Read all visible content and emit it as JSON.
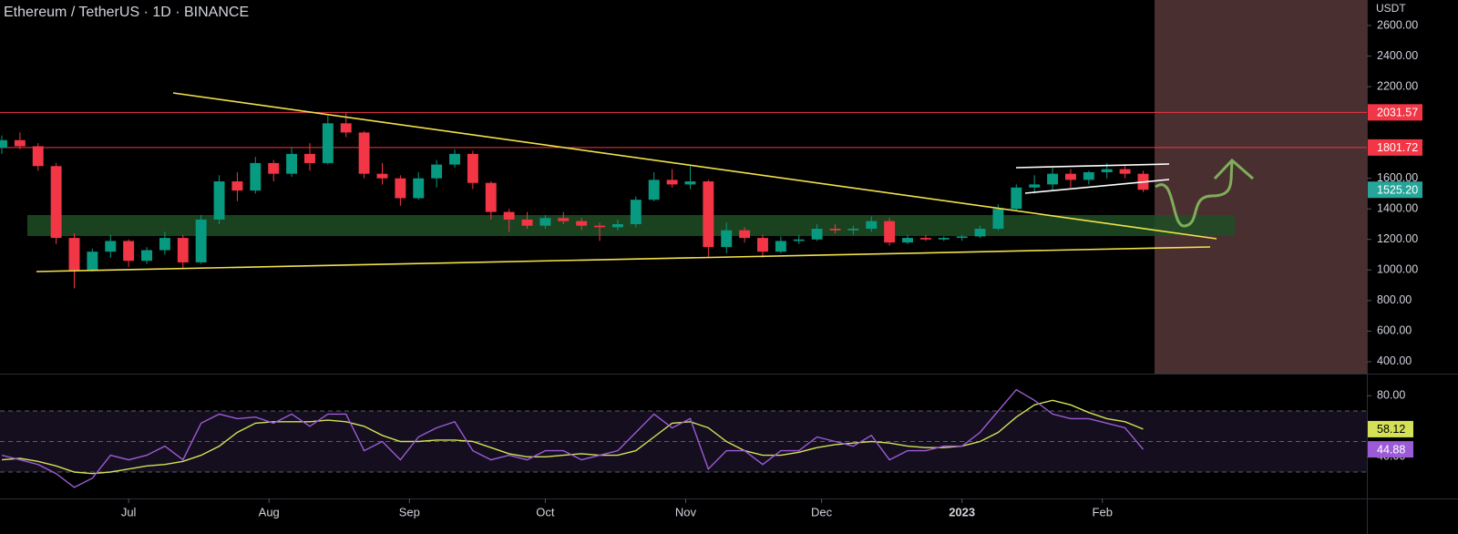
{
  "chart_data": [
    {
      "type": "candlestick",
      "title": "Ethereum / TetherUS · 1D · BINANCE",
      "ylabel": "USDT",
      "xlim": [
        1.6,
        303.4
      ],
      "ylim": [
        322,
        2767
      ],
      "yticks": [
        {
          "value": 400,
          "label": "400.00"
        },
        {
          "value": 600,
          "label": "600.00"
        },
        {
          "value": 800,
          "label": "800.00"
        },
        {
          "value": 1000,
          "label": "1000.00"
        },
        {
          "value": 1200,
          "label": "1200.00"
        },
        {
          "value": 1400,
          "label": "1400.00"
        },
        {
          "value": 1600,
          "label": "1600.00"
        },
        {
          "value": 2200,
          "label": "2200.00"
        },
        {
          "value": 2400,
          "label": "2400.00"
        },
        {
          "value": 2600,
          "label": "2600.00"
        }
      ],
      "up_color": "#089981",
      "down_color": "#f23645",
      "x": [
        2,
        6,
        10,
        14,
        18,
        22,
        26,
        30,
        34,
        38,
        42,
        46,
        50,
        54,
        58,
        62,
        66,
        70,
        74,
        78,
        82,
        86,
        90,
        94,
        98,
        102,
        106,
        110,
        114,
        118,
        122,
        126,
        130,
        134,
        138,
        142,
        146,
        150,
        154,
        158,
        162,
        166,
        170,
        174,
        178,
        182,
        186,
        190,
        194,
        198,
        202,
        206,
        210,
        214,
        218,
        222,
        226,
        230,
        234,
        238,
        242,
        246,
        250,
        254
      ],
      "open": [
        1800,
        1850,
        1810,
        1680,
        1210,
        1000,
        1120,
        1190,
        1060,
        1130,
        1210,
        1050,
        1330,
        1580,
        1520,
        1700,
        1630,
        1760,
        1700,
        1960,
        1900,
        1630,
        1600,
        1470,
        1600,
        1690,
        1760,
        1570,
        1380,
        1330,
        1290,
        1340,
        1320,
        1290,
        1280,
        1300,
        1460,
        1590,
        1560,
        1580,
        1150,
        1260,
        1210,
        1120,
        1190,
        1200,
        1270,
        1260,
        1270,
        1320,
        1180,
        1210,
        1200,
        1210,
        1220,
        1270,
        1400,
        1540,
        1560,
        1630,
        1590,
        1640,
        1660,
        1630
      ],
      "high": [
        1880,
        1900,
        1830,
        1700,
        1240,
        1140,
        1230,
        1200,
        1150,
        1250,
        1230,
        1360,
        1620,
        1640,
        1740,
        1720,
        1800,
        1830,
        2010,
        2030,
        1910,
        1700,
        1620,
        1640,
        1720,
        1790,
        1780,
        1580,
        1400,
        1380,
        1360,
        1380,
        1340,
        1310,
        1330,
        1480,
        1640,
        1660,
        1680,
        1590,
        1310,
        1280,
        1230,
        1220,
        1230,
        1300,
        1300,
        1290,
        1350,
        1340,
        1230,
        1230,
        1220,
        1230,
        1290,
        1430,
        1560,
        1620,
        1670,
        1660,
        1650,
        1700,
        1690,
        1650
      ],
      "low": [
        1760,
        1790,
        1650,
        1170,
        880,
        990,
        1080,
        1020,
        1040,
        1100,
        1010,
        1040,
        1300,
        1450,
        1500,
        1580,
        1610,
        1650,
        1690,
        1870,
        1600,
        1560,
        1420,
        1460,
        1540,
        1670,
        1530,
        1330,
        1250,
        1270,
        1270,
        1300,
        1260,
        1190,
        1260,
        1280,
        1450,
        1540,
        1530,
        1080,
        1110,
        1180,
        1080,
        1110,
        1170,
        1190,
        1240,
        1230,
        1250,
        1160,
        1170,
        1190,
        1190,
        1190,
        1210,
        1260,
        1390,
        1500,
        1520,
        1540,
        1560,
        1600,
        1600,
        1510
      ],
      "close": [
        1850,
        1810,
        1680,
        1210,
        1000,
        1120,
        1190,
        1060,
        1130,
        1210,
        1050,
        1330,
        1580,
        1520,
        1700,
        1630,
        1760,
        1700,
        1960,
        1900,
        1630,
        1600,
        1470,
        1600,
        1690,
        1760,
        1570,
        1380,
        1330,
        1290,
        1340,
        1320,
        1290,
        1280,
        1300,
        1460,
        1590,
        1560,
        1580,
        1150,
        1260,
        1210,
        1120,
        1190,
        1200,
        1270,
        1260,
        1270,
        1320,
        1180,
        1210,
        1200,
        1210,
        1220,
        1270,
        1400,
        1540,
        1560,
        1630,
        1590,
        1640,
        1660,
        1630,
        1525.2
      ],
      "last_price_label": "1525.20",
      "last_price_color": "#26a69a",
      "price_lines": [
        2031.57,
        1801.72
      ],
      "price_line_color": "#f23645"
    },
    {
      "type": "line",
      "xlim": [
        1.6,
        303.4
      ],
      "ylim": [
        13.9,
        94.5
      ],
      "xticks": [
        {
          "value": 30,
          "label": "Jul"
        },
        {
          "value": 61,
          "label": "Aug"
        },
        {
          "value": 92,
          "label": "Sep"
        },
        {
          "value": 122,
          "label": "Oct"
        },
        {
          "value": 153,
          "label": "Nov"
        },
        {
          "value": 183,
          "label": "Dec"
        },
        {
          "value": 214,
          "label": "2023"
        },
        {
          "value": 245,
          "label": "Feb"
        }
      ],
      "yticks": [
        {
          "value": 40,
          "label": "40.00"
        },
        {
          "value": 80,
          "label": "80.00"
        }
      ],
      "band": [
        30,
        70
      ],
      "levels": [
        30,
        50,
        70
      ],
      "x": [
        2,
        6,
        10,
        14,
        18,
        22,
        26,
        30,
        34,
        38,
        42,
        46,
        50,
        54,
        58,
        62,
        66,
        70,
        74,
        78,
        82,
        86,
        90,
        94,
        98,
        102,
        106,
        110,
        114,
        118,
        122,
        126,
        130,
        134,
        138,
        142,
        146,
        150,
        154,
        158,
        162,
        166,
        170,
        174,
        178,
        182,
        186,
        190,
        194,
        198,
        202,
        206,
        210,
        214,
        218,
        222,
        226,
        230,
        234,
        238,
        242,
        246,
        250,
        254
      ],
      "series": [
        {
          "color": "#d4e157",
          "values": [
            38,
            39,
            37,
            34,
            30,
            29,
            30,
            32,
            34,
            35,
            37,
            41,
            47,
            56,
            62,
            63,
            63,
            63,
            64,
            63,
            60,
            54,
            50,
            50,
            51,
            51,
            50,
            46,
            42,
            40,
            40,
            41,
            42,
            41,
            41,
            44,
            53,
            62,
            63,
            59,
            50,
            44,
            41,
            41,
            43,
            46,
            48,
            49,
            50,
            49,
            47,
            46,
            46,
            47,
            50,
            56,
            66,
            74,
            77,
            74,
            69,
            65,
            63,
            58.12
          ]
        },
        {
          "color": "#9c5bd6",
          "values": [
            41,
            38,
            35,
            29,
            20,
            26,
            41,
            38,
            41,
            47,
            38,
            62,
            68,
            65,
            66,
            62,
            68,
            60,
            68,
            68,
            44,
            50,
            38,
            53,
            59,
            63,
            44,
            38,
            41,
            38,
            44,
            44,
            38,
            41,
            44,
            56,
            68,
            59,
            65,
            32,
            44,
            44,
            35,
            44,
            44,
            53,
            50,
            47,
            54,
            38,
            44,
            44,
            47,
            47,
            56,
            70,
            84,
            77,
            68,
            65,
            65,
            62,
            59,
            44.88
          ]
        }
      ]
    }
  ]
}
